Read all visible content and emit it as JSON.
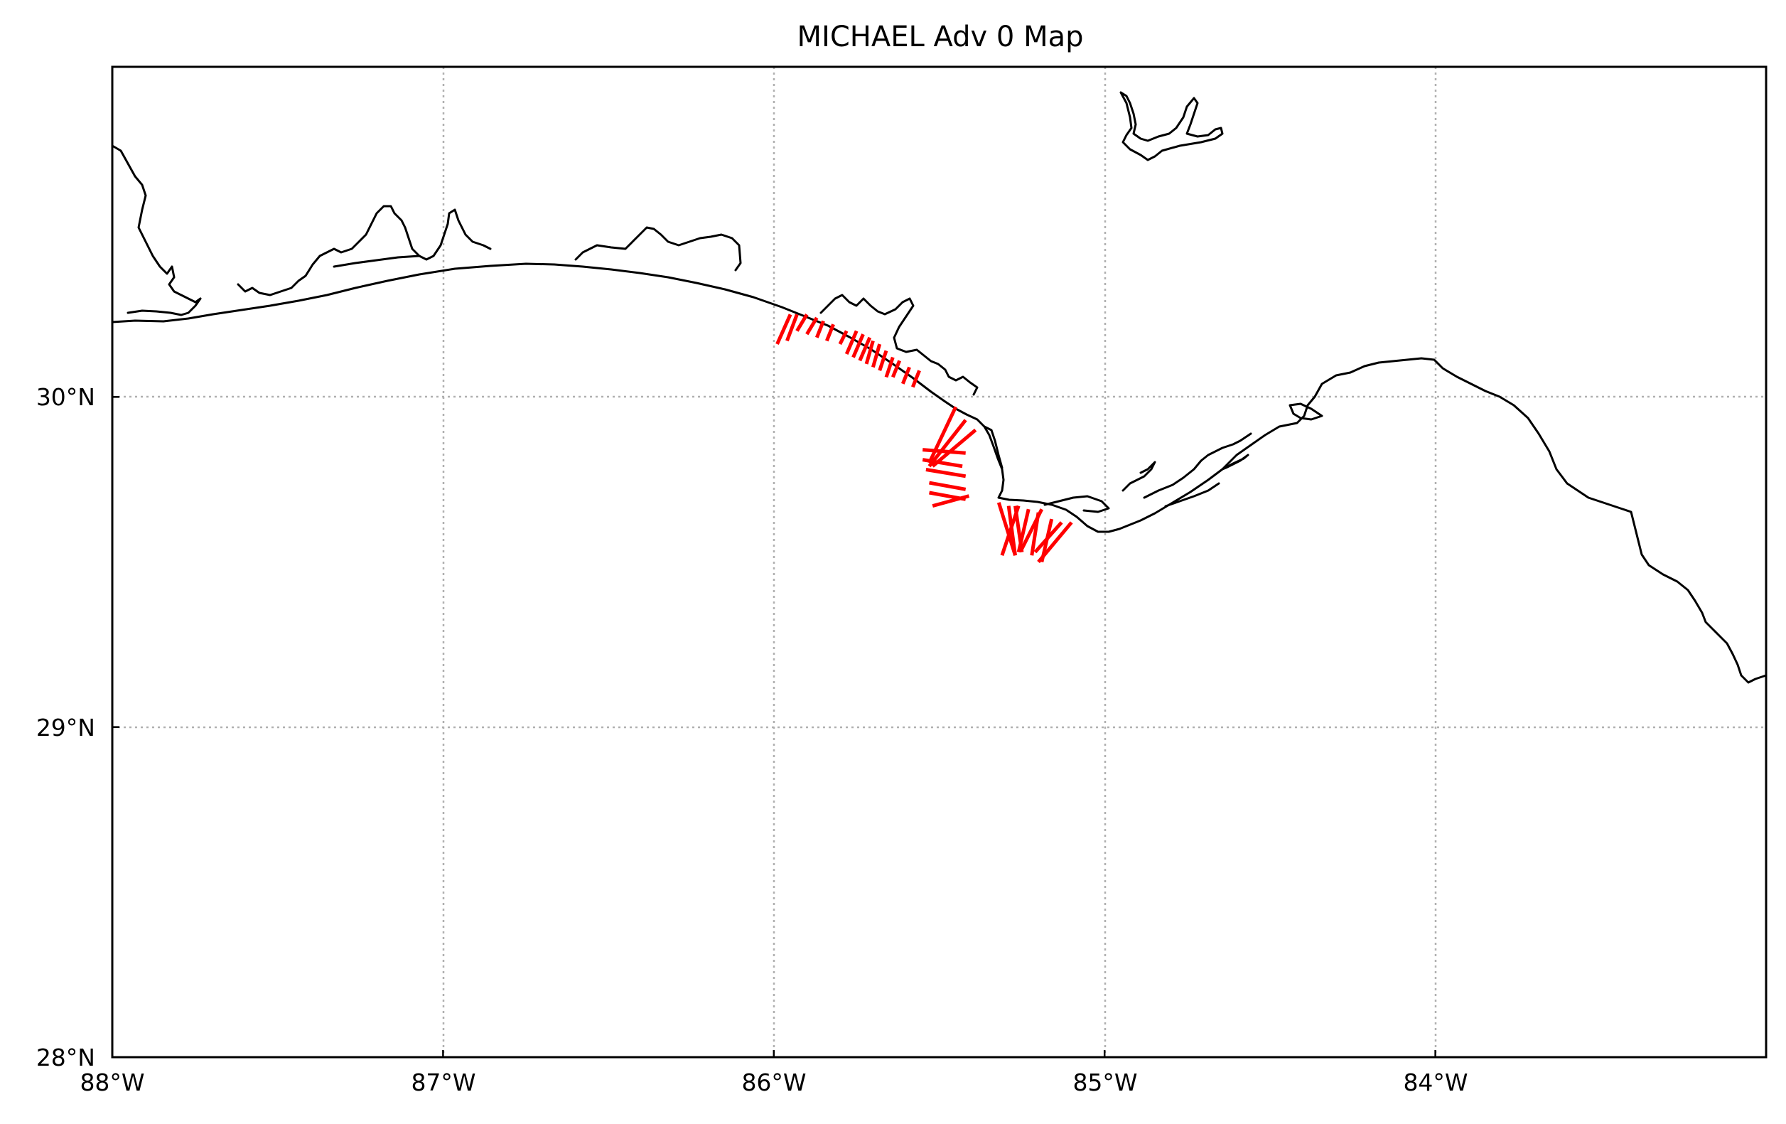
{
  "title": "MICHAEL Adv 0 Map",
  "chart_data": {
    "type": "map",
    "title": "MICHAEL Adv 0 Map",
    "projection": "plate carree",
    "xlim": [
      -88.0,
      -83.0
    ],
    "ylim": [
      28.0,
      31.0
    ],
    "grid": true,
    "x_ticks": [
      {
        "value": -88,
        "label": "88°W"
      },
      {
        "value": -87,
        "label": "87°W"
      },
      {
        "value": -86,
        "label": "86°W"
      },
      {
        "value": -85,
        "label": "85°W"
      },
      {
        "value": -84,
        "label": "84°W"
      }
    ],
    "y_ticks": [
      {
        "value": 28,
        "label": "28°N"
      },
      {
        "value": 29,
        "label": "29°N"
      },
      {
        "value": 30,
        "label": "30°N"
      }
    ],
    "colors": {
      "coastline": "#000000",
      "markers": "#ff0000",
      "grid": "#b0b0b0"
    },
    "marker_segments": [
      [
        [
          -85.99,
          30.16
        ],
        [
          -85.95,
          30.25
        ]
      ],
      [
        [
          -85.96,
          30.17
        ],
        [
          -85.93,
          30.25
        ]
      ],
      [
        [
          -85.93,
          30.2
        ],
        [
          -85.9,
          30.25
        ]
      ],
      [
        [
          -85.9,
          30.19
        ],
        [
          -85.87,
          30.24
        ]
      ],
      [
        [
          -85.87,
          30.18
        ],
        [
          -85.85,
          30.23
        ]
      ],
      [
        [
          -85.84,
          30.17
        ],
        [
          -85.82,
          30.22
        ]
      ],
      [
        [
          -85.8,
          30.16
        ],
        [
          -85.78,
          30.2
        ]
      ],
      [
        [
          -85.78,
          30.13
        ],
        [
          -85.75,
          30.2
        ]
      ],
      [
        [
          -85.76,
          30.12
        ],
        [
          -85.73,
          30.19
        ]
      ],
      [
        [
          -85.74,
          30.11
        ],
        [
          -85.71,
          30.18
        ]
      ],
      [
        [
          -85.72,
          30.1
        ],
        [
          -85.7,
          30.17
        ]
      ],
      [
        [
          -85.7,
          30.09
        ],
        [
          -85.68,
          30.16
        ]
      ],
      [
        [
          -85.68,
          30.08
        ],
        [
          -85.66,
          30.14
        ]
      ],
      [
        [
          -85.66,
          30.06
        ],
        [
          -85.64,
          30.12
        ]
      ],
      [
        [
          -85.64,
          30.06
        ],
        [
          -85.62,
          30.11
        ]
      ],
      [
        [
          -85.61,
          30.04
        ],
        [
          -85.59,
          30.09
        ]
      ],
      [
        [
          -85.58,
          30.03
        ],
        [
          -85.56,
          30.08
        ]
      ],
      [
        [
          -85.45,
          29.97
        ],
        [
          -85.53,
          29.8
        ]
      ],
      [
        [
          -85.42,
          29.93
        ],
        [
          -85.53,
          29.79
        ]
      ],
      [
        [
          -85.39,
          29.9
        ],
        [
          -85.52,
          29.79
        ]
      ],
      [
        [
          -85.55,
          29.84
        ],
        [
          -85.42,
          29.83
        ]
      ],
      [
        [
          -85.55,
          29.81
        ],
        [
          -85.43,
          29.79
        ]
      ],
      [
        [
          -85.54,
          29.78
        ],
        [
          -85.42,
          29.76
        ]
      ],
      [
        [
          -85.53,
          29.74
        ],
        [
          -85.42,
          29.72
        ]
      ],
      [
        [
          -85.53,
          29.71
        ],
        [
          -85.42,
          29.69
        ]
      ],
      [
        [
          -85.52,
          29.67
        ],
        [
          -85.41,
          29.7
        ]
      ],
      [
        [
          -85.32,
          29.68
        ],
        [
          -85.27,
          29.52
        ]
      ],
      [
        [
          -85.29,
          29.67
        ],
        [
          -85.27,
          29.52
        ]
      ],
      [
        [
          -85.27,
          29.67
        ],
        [
          -85.25,
          29.53
        ]
      ],
      [
        [
          -85.26,
          29.67
        ],
        [
          -85.31,
          29.52
        ]
      ],
      [
        [
          -85.23,
          29.66
        ],
        [
          -85.26,
          29.53
        ]
      ],
      [
        [
          -85.2,
          29.65
        ],
        [
          -85.22,
          29.52
        ]
      ],
      [
        [
          -85.19,
          29.66
        ],
        [
          -85.25,
          29.54
        ]
      ],
      [
        [
          -85.16,
          29.63
        ],
        [
          -85.19,
          29.5
        ]
      ],
      [
        [
          -85.1,
          29.62
        ],
        [
          -85.2,
          29.5
        ]
      ],
      [
        [
          -85.13,
          29.62
        ],
        [
          -85.21,
          29.53
        ]
      ]
    ]
  }
}
